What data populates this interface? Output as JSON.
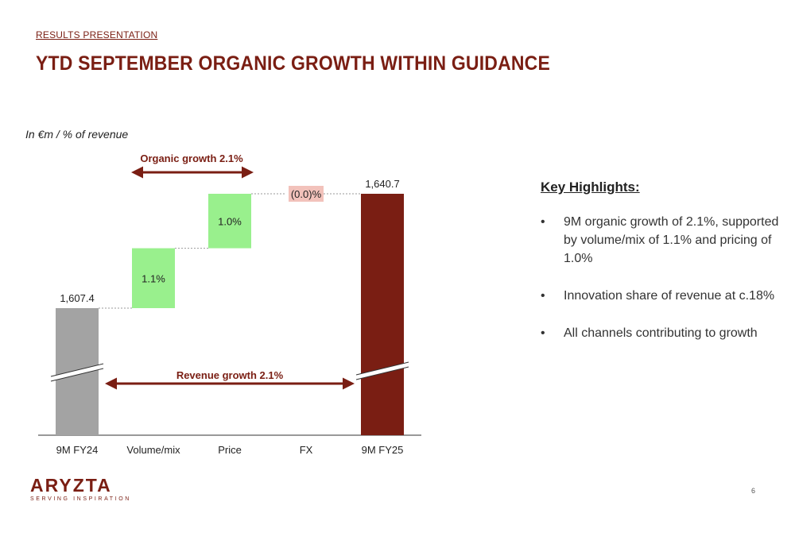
{
  "header": {
    "section_label": "RESULTS PRESENTATION",
    "title": "YTD SEPTEMBER ORGANIC GROWTH WITHIN GUIDANCE"
  },
  "chart": {
    "unit_note": "In €m / % of revenue"
  },
  "chart_data": {
    "type": "bar",
    "subtype": "waterfall",
    "categories": [
      "9M FY24",
      "Volume/mix",
      "Price",
      "FX",
      "9M FY25"
    ],
    "start_value": 1607.4,
    "end_value": 1640.7,
    "steps_pct": [
      1.1,
      1.0,
      0.0
    ],
    "start_label": "1,607.4",
    "step_labels": [
      "1.1%",
      "1.0%",
      "(0.0)%"
    ],
    "end_label": "1,640.7",
    "organic_growth_label": "Organic growth 2.1%",
    "revenue_growth_label": "Revenue growth 2.1%",
    "axis_break": true,
    "colors": {
      "start_bar": "#a3a3a3",
      "positive_step": "#99f08d",
      "negative_step": "#f2c2bb",
      "end_bar": "#7a1e13",
      "arrow": "#7a1e13"
    }
  },
  "highlights": {
    "title": "Key Highlights:",
    "items": [
      "9M organic growth of 2.1%, supported by volume/mix of 1.1% and pricing of 1.0%",
      "Innovation share of revenue at c.18%",
      "All channels contributing to growth"
    ],
    "bullet": "•"
  },
  "footer": {
    "logo_word": "ARYZTA",
    "logo_tagline": "SERVING INSPIRATION",
    "page_number": "6"
  }
}
